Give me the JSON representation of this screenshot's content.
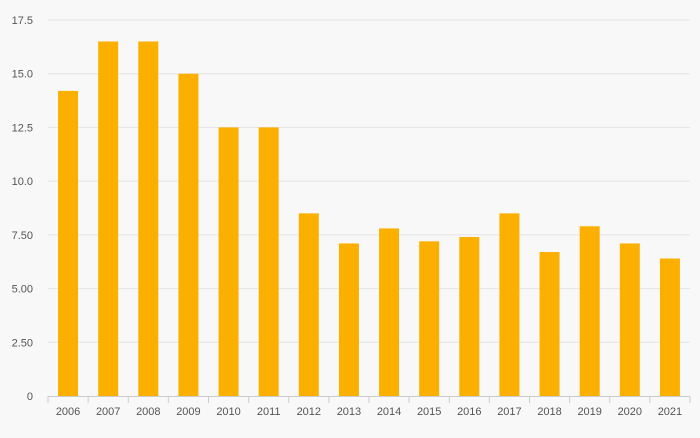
{
  "chart_data": {
    "type": "bar",
    "categories": [
      "2006",
      "2007",
      "2008",
      "2009",
      "2010",
      "2011",
      "2012",
      "2013",
      "2014",
      "2015",
      "2016",
      "2017",
      "2018",
      "2019",
      "2020",
      "2021"
    ],
    "values": [
      14.2,
      16.5,
      16.5,
      15.0,
      12.5,
      12.5,
      8.5,
      7.1,
      7.8,
      7.2,
      7.4,
      8.5,
      6.7,
      7.9,
      7.1,
      6.4
    ],
    "y_ticks": [
      "0",
      "2.50",
      "5.00",
      "7.50",
      "10.0",
      "12.5",
      "15.0",
      "17.5"
    ],
    "ylim": [
      0,
      17.5
    ],
    "title": "",
    "xlabel": "",
    "ylabel": "",
    "grid": true,
    "legend": "none"
  },
  "colors": {
    "bar": "#fbb000",
    "grid": "#e3e3e3",
    "axis": "#cccccc",
    "tick_text": "#555555",
    "background": "#f8f8f8"
  }
}
